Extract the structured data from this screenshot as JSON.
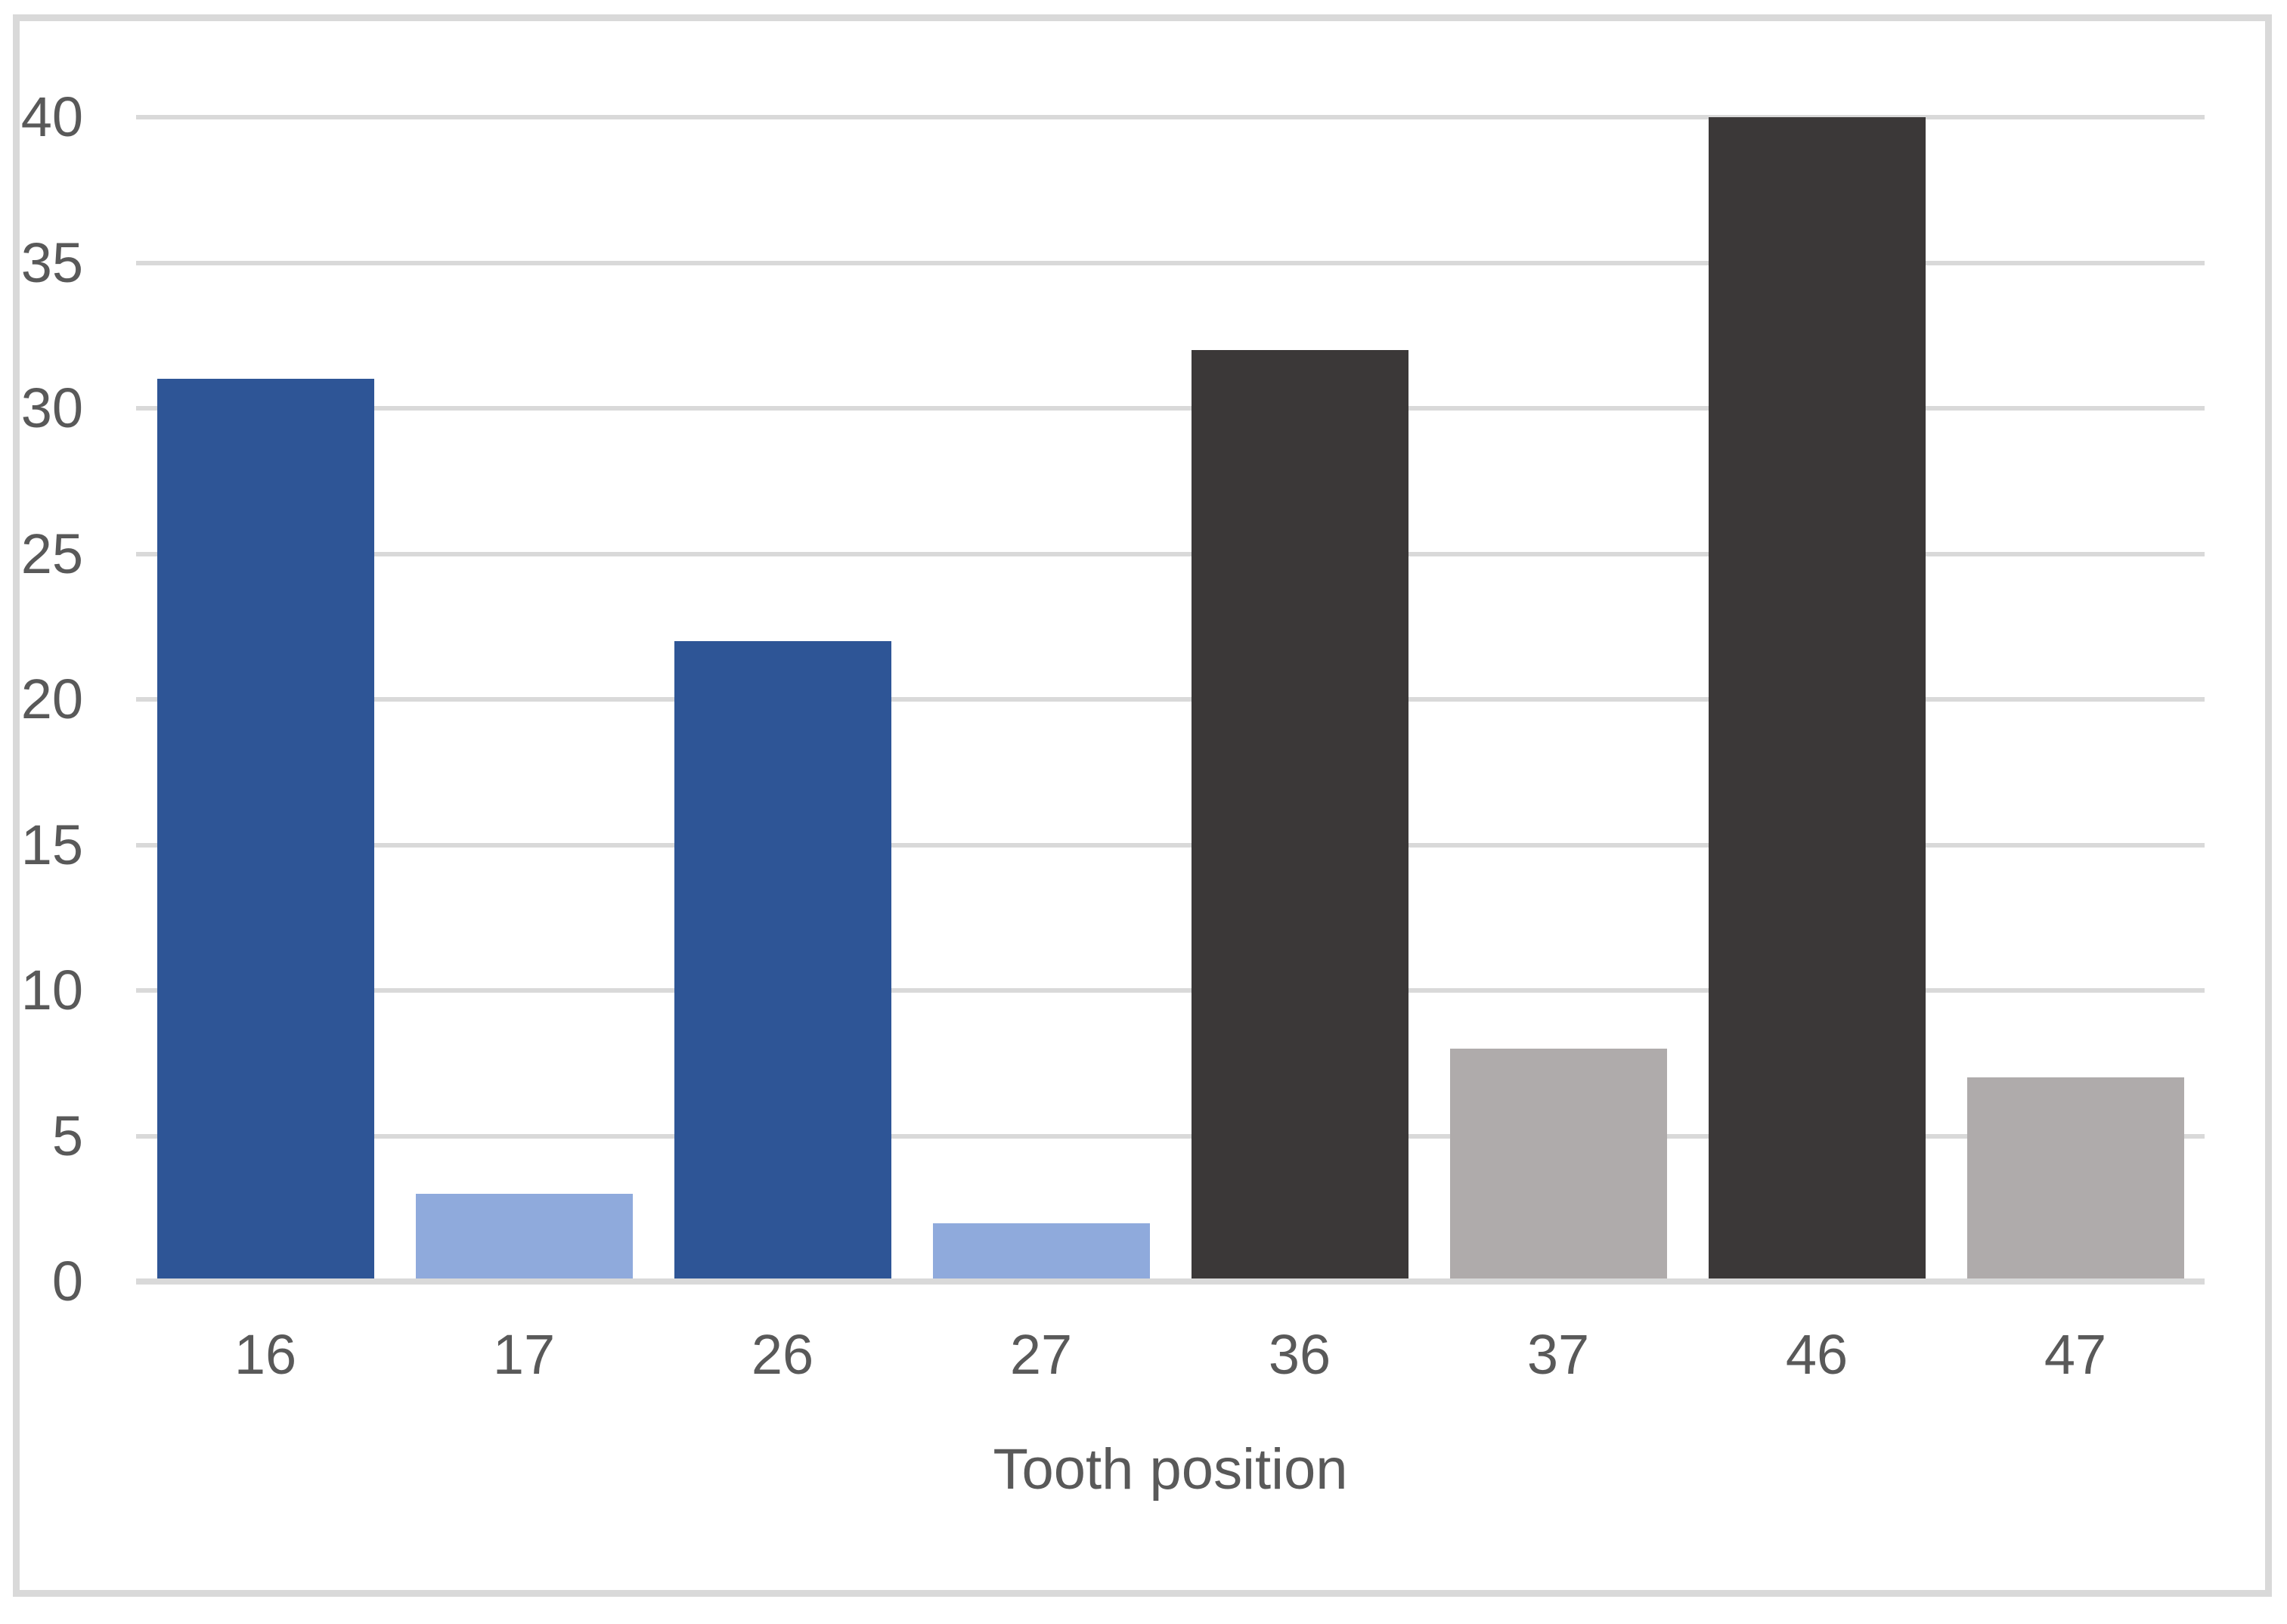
{
  "chart_data": {
    "type": "bar",
    "title": "",
    "xlabel": "Tooth position",
    "ylabel": "",
    "categories": [
      "16",
      "17",
      "26",
      "27",
      "36",
      "37",
      "46",
      "47"
    ],
    "values": [
      31,
      3,
      22,
      2,
      32,
      8,
      40,
      7
    ],
    "bar_colors": [
      "#2E5596",
      "#8FAADC",
      "#2E5596",
      "#8FAADC",
      "#3B3838",
      "#AFABAB",
      "#3B3838",
      "#AFABAB"
    ],
    "ylim": [
      0,
      40
    ],
    "yticks": [
      0,
      5,
      10,
      15,
      20,
      25,
      30,
      35,
      40
    ],
    "grid": true,
    "legend": "none"
  },
  "style": {
    "gridline_color": "#D9D9D9",
    "axis_line_color": "#D9D9D9",
    "frame_border_color": "#D9D9D9",
    "text_color": "#595959",
    "background_color": "#FFFFFF"
  }
}
